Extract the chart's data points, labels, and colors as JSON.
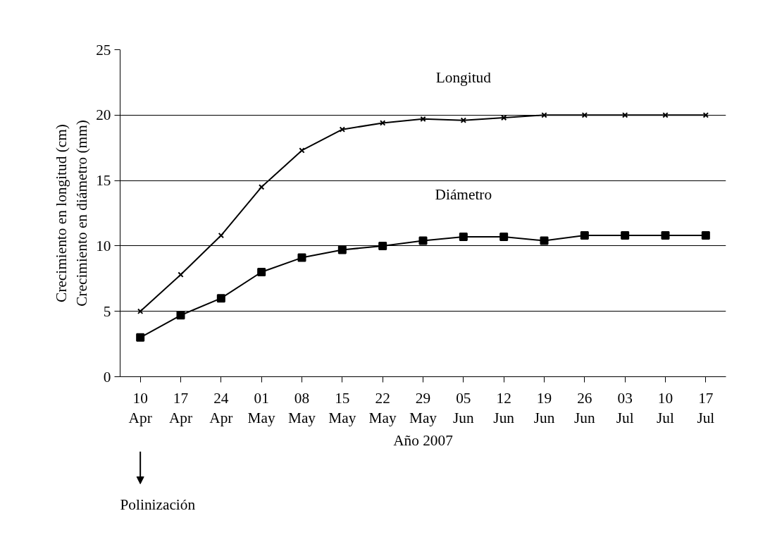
{
  "chart_data": {
    "type": "line",
    "xlabel": "Año 2007",
    "ylabel": "Crecimiento en longitud (cm)\nCrecimiento en diámetro (mm)",
    "categories": [
      "10 Apr",
      "17 Apr",
      "24 Apr",
      "01 May",
      "08 May",
      "15 May",
      "22 May",
      "29 May",
      "05 Jun",
      "12 Jun",
      "19 Jun",
      "26 Jun",
      "03 Jul",
      "10 Jul",
      "17 Jul"
    ],
    "series": [
      {
        "name": "Longitud",
        "color": "#000000",
        "marker": "cross",
        "values": [
          5.0,
          7.8,
          10.8,
          14.5,
          17.3,
          18.9,
          19.4,
          19.7,
          19.6,
          19.8,
          20,
          20,
          20,
          20,
          20
        ]
      },
      {
        "name": "Diámetro",
        "color": "#000000",
        "marker": "square",
        "values": [
          3.0,
          4.7,
          6.0,
          8.0,
          9.1,
          9.7,
          10.0,
          10.4,
          10.7,
          10.7,
          10.4,
          10.8,
          10.8,
          10.8,
          10.8
        ]
      }
    ],
    "ylim": [
      0,
      25
    ],
    "yticks": [
      0,
      5,
      10,
      15,
      20,
      25
    ],
    "grid": "y",
    "legend": false,
    "annotations": [
      "Polinización"
    ]
  }
}
